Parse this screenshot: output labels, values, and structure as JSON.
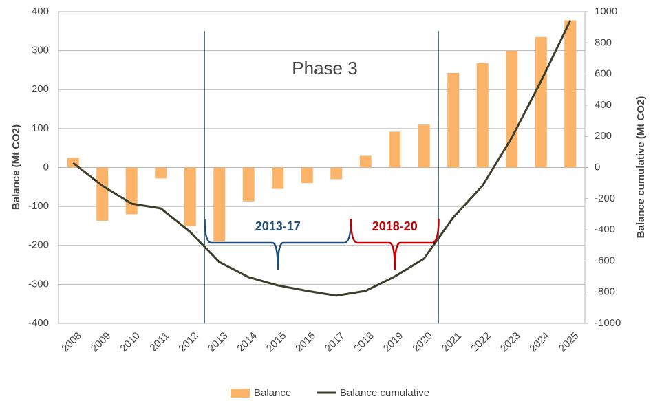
{
  "chart_data": {
    "type": "bar_line",
    "categories": [
      "2008",
      "2009",
      "2010",
      "2011",
      "2012",
      "2013",
      "2014",
      "2015",
      "2016",
      "2017",
      "2018",
      "2019",
      "2020",
      "2021",
      "2022",
      "2023",
      "2024",
      "2025"
    ],
    "series": [
      {
        "name": "Balance",
        "color": "#fbb46a",
        "type": "bar",
        "values": [
          25,
          -137,
          -120,
          -28,
          -150,
          -190,
          -87,
          -55,
          -40,
          -30,
          30,
          92,
          110,
          243,
          268,
          300,
          335,
          378
        ]
      },
      {
        "name": "Balance cumulative",
        "color": "#3d3d2a",
        "type": "line",
        "axis": "y2",
        "values": [
          29,
          -117,
          -232,
          -263,
          -413,
          -607,
          -704,
          -757,
          -792,
          -823,
          -792,
          -700,
          -585,
          -320,
          -117,
          192,
          554,
          943
        ]
      }
    ],
    "ylabel": "Balance (Mt CO2)",
    "y2label": "Balance cumulative (Mt CO2)",
    "ylim": [
      -400,
      400
    ],
    "yticks": [
      -400,
      -300,
      -200,
      -100,
      0,
      100,
      200,
      300,
      400
    ],
    "y2lim": [
      -1000,
      1000
    ],
    "y2ticks": [
      -1000,
      -800,
      -600,
      -400,
      -200,
      0,
      200,
      400,
      600,
      800,
      1000
    ],
    "annotations": [
      "Phase 3",
      "2013-17",
      "2018-20"
    ],
    "grid": true,
    "legend": "bottom"
  }
}
